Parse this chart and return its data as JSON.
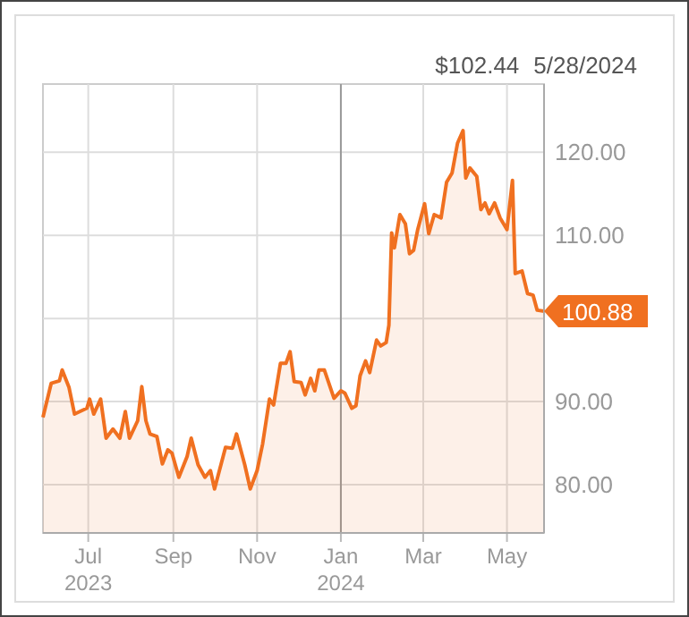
{
  "chart_data": {
    "type": "area",
    "annotations": [
      "$102.44",
      "5/28/2024",
      {
        "text": "100.88",
        "x": "2024-05-28",
        "y": 100.88
      }
    ],
    "x": [
      "2023-05-29",
      "2023-06-04",
      "2023-06-10",
      "2023-06-12",
      "2023-06-17",
      "2023-06-21",
      "2023-06-30",
      "2023-07-02",
      "2023-07-05",
      "2023-07-10",
      "2023-07-14",
      "2023-07-19",
      "2023-07-24",
      "2023-07-28",
      "2023-07-31",
      "2023-08-06",
      "2023-08-09",
      "2023-08-12",
      "2023-08-15",
      "2023-08-20",
      "2023-08-24",
      "2023-08-28",
      "2023-08-31",
      "2023-09-05",
      "2023-09-11",
      "2023-09-14",
      "2023-09-19",
      "2023-09-24",
      "2023-09-28",
      "2023-10-01",
      "2023-10-09",
      "2023-10-14",
      "2023-10-17",
      "2023-10-23",
      "2023-10-27",
      "2023-11-01",
      "2023-11-05",
      "2023-11-10",
      "2023-11-13",
      "2023-11-18",
      "2023-11-22",
      "2023-11-25",
      "2023-11-28",
      "2023-12-03",
      "2023-12-06",
      "2023-12-10",
      "2023-12-13",
      "2023-12-16",
      "2023-12-20",
      "2023-12-27",
      "2024-01-01",
      "2024-01-04",
      "2024-01-09",
      "2024-01-12",
      "2024-01-15",
      "2024-01-19",
      "2024-01-22",
      "2024-01-27",
      "2024-01-30",
      "2024-02-03",
      "2024-02-05",
      "2024-02-07",
      "2024-02-09",
      "2024-02-13",
      "2024-02-17",
      "2024-02-20",
      "2024-02-23",
      "2024-02-26",
      "2024-03-02",
      "2024-03-05",
      "2024-03-09",
      "2024-03-14",
      "2024-03-18",
      "2024-03-22",
      "2024-03-26",
      "2024-03-30",
      "2024-04-01",
      "2024-04-04",
      "2024-04-09",
      "2024-04-12",
      "2024-04-15",
      "2024-04-18",
      "2024-04-22",
      "2024-04-26",
      "2024-05-01",
      "2024-05-05",
      "2024-05-07",
      "2024-05-12",
      "2024-05-16",
      "2024-05-20",
      "2024-05-23",
      "2024-05-28"
    ],
    "series": [
      {
        "color": "#f07020",
        "values": [
          88.1,
          92.2,
          92.5,
          93.8,
          91.7,
          88.5,
          89.2,
          90.3,
          88.5,
          90.3,
          85.6,
          86.7,
          85.6,
          88.8,
          85.6,
          87.7,
          91.8,
          87.7,
          86.1,
          85.8,
          82.5,
          84.2,
          83.8,
          80.9,
          83.4,
          85.6,
          82.4,
          80.9,
          81.7,
          79.5,
          84.5,
          84.4,
          86.1,
          82.4,
          79.5,
          81.7,
          84.9,
          90.3,
          89.6,
          94.6,
          94.6,
          96.0,
          92.4,
          92.3,
          90.8,
          92.8,
          91.3,
          93.8,
          93.8,
          90.4,
          91.3,
          91.0,
          89.2,
          89.5,
          93.1,
          94.9,
          93.5,
          97.4,
          96.7,
          97.1,
          99.2,
          110.3,
          108.5,
          112.5,
          111.4,
          107.8,
          108.2,
          110.7,
          113.8,
          110.2,
          112.5,
          112.1,
          116.4,
          117.5,
          121.1,
          122.6,
          116.9,
          118.1,
          117.1,
          113.1,
          113.9,
          112.6,
          113.9,
          112.1,
          110.7,
          116.6,
          105.4,
          105.7,
          103.0,
          102.8,
          101.0,
          100.88
        ]
      }
    ],
    "xlim": [
      "2023-05-29",
      "2024-05-28"
    ],
    "xticks": [
      {
        "value": "2023-07-01",
        "label": "Jul\n2023"
      },
      {
        "value": "2023-09-01",
        "label": "Sep"
      },
      {
        "value": "2023-11-01",
        "label": "Nov"
      },
      {
        "value": "2024-01-01",
        "label": "Jan\n2024"
      },
      {
        "value": "2024-03-01",
        "label": "Mar"
      },
      {
        "value": "2024-05-01",
        "label": "May"
      }
    ],
    "ylim": [
      74.2,
      128.2
    ],
    "yticks": [
      {
        "value": 80,
        "label": "80.00"
      },
      {
        "value": 90,
        "label": "90.00"
      },
      {
        "value": 100,
        "label": null
      },
      {
        "value": 110,
        "label": "110.00"
      },
      {
        "value": 120,
        "label": "120.00"
      }
    ],
    "ref_lines": [
      {
        "axis": "x",
        "value": "2024-01-01",
        "color": "#999999"
      }
    ],
    "grid": true,
    "line_style": "solid"
  }
}
